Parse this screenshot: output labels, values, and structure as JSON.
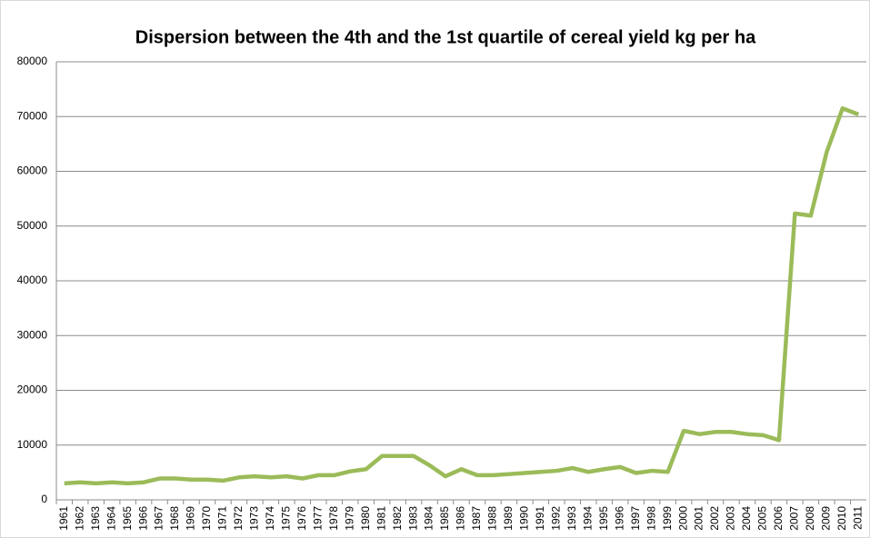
{
  "chart_data": {
    "type": "line",
    "title": "Dispersion between the 4th and the 1st quartile of cereal yield kg per ha",
    "categories": [
      "1961",
      "1962",
      "1963",
      "1964",
      "1965",
      "1966",
      "1967",
      "1968",
      "1969",
      "1970",
      "1971",
      "1972",
      "1973",
      "1974",
      "1975",
      "1976",
      "1977",
      "1978",
      "1979",
      "1980",
      "1981",
      "1982",
      "1983",
      "1984",
      "1985",
      "1986",
      "1987",
      "1988",
      "1989",
      "1990",
      "1991",
      "1992",
      "1993",
      "1994",
      "1995",
      "1996",
      "1997",
      "1998",
      "1999",
      "2000",
      "2001",
      "2002",
      "2003",
      "2004",
      "2005",
      "2006",
      "2007",
      "2008",
      "2009",
      "2010",
      "2011"
    ],
    "values": [
      3000,
      3200,
      3000,
      3200,
      3000,
      3200,
      3900,
      3900,
      3700,
      3700,
      3500,
      4100,
      4300,
      4100,
      4300,
      3900,
      4500,
      4500,
      5200,
      5600,
      8000,
      8000,
      8000,
      6300,
      4300,
      5600,
      4500,
      4500,
      4700,
      4900,
      5100,
      5300,
      5800,
      5100,
      5600,
      6000,
      4900,
      5300,
      5100,
      12600,
      12000,
      12400,
      12400,
      12000,
      11800,
      10900,
      52300,
      51900,
      63500,
      71500,
      70400
    ],
    "color": "#9bbb59",
    "ylim": [
      0,
      80000
    ],
    "yticks": [
      0,
      10000,
      20000,
      30000,
      40000,
      50000,
      60000,
      70000,
      80000
    ],
    "grid": true
  }
}
